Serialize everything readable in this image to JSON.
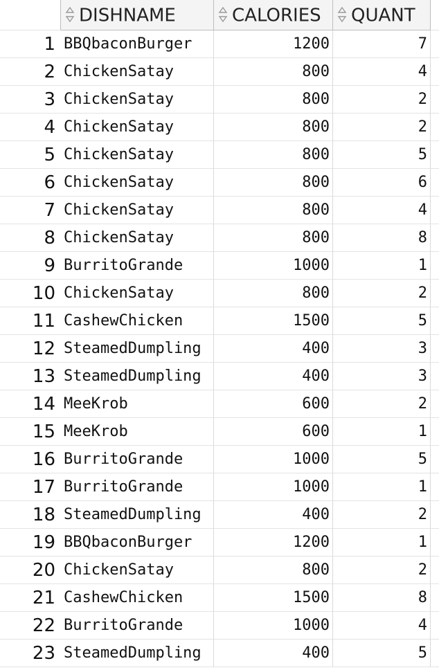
{
  "columns": {
    "dishname": "DISHNAME",
    "calories": "CALORIES",
    "quant": "QUANT",
    "sort_icon": "sort-arrows-icon"
  },
  "rows": [
    {
      "num": "1",
      "dishname": "BBQbaconBurger",
      "calories": "1200",
      "quant": "7"
    },
    {
      "num": "2",
      "dishname": "ChickenSatay",
      "calories": "800",
      "quant": "4"
    },
    {
      "num": "3",
      "dishname": "ChickenSatay",
      "calories": "800",
      "quant": "2"
    },
    {
      "num": "4",
      "dishname": "ChickenSatay",
      "calories": "800",
      "quant": "2"
    },
    {
      "num": "5",
      "dishname": "ChickenSatay",
      "calories": "800",
      "quant": "5"
    },
    {
      "num": "6",
      "dishname": "ChickenSatay",
      "calories": "800",
      "quant": "6"
    },
    {
      "num": "7",
      "dishname": "ChickenSatay",
      "calories": "800",
      "quant": "4"
    },
    {
      "num": "8",
      "dishname": "ChickenSatay",
      "calories": "800",
      "quant": "8"
    },
    {
      "num": "9",
      "dishname": "BurritoGrande",
      "calories": "1000",
      "quant": "1"
    },
    {
      "num": "10",
      "dishname": "ChickenSatay",
      "calories": "800",
      "quant": "2"
    },
    {
      "num": "11",
      "dishname": "CashewChicken",
      "calories": "1500",
      "quant": "5"
    },
    {
      "num": "12",
      "dishname": "SteamedDumpling",
      "calories": "400",
      "quant": "3"
    },
    {
      "num": "13",
      "dishname": "SteamedDumpling",
      "calories": "400",
      "quant": "3"
    },
    {
      "num": "14",
      "dishname": "MeeKrob",
      "calories": "600",
      "quant": "2"
    },
    {
      "num": "15",
      "dishname": "MeeKrob",
      "calories": "600",
      "quant": "1"
    },
    {
      "num": "16",
      "dishname": "BurritoGrande",
      "calories": "1000",
      "quant": "5"
    },
    {
      "num": "17",
      "dishname": "BurritoGrande",
      "calories": "1000",
      "quant": "1"
    },
    {
      "num": "18",
      "dishname": "SteamedDumpling",
      "calories": "400",
      "quant": "2"
    },
    {
      "num": "19",
      "dishname": "BBQbaconBurger",
      "calories": "1200",
      "quant": "1"
    },
    {
      "num": "20",
      "dishname": "ChickenSatay",
      "calories": "800",
      "quant": "2"
    },
    {
      "num": "21",
      "dishname": "CashewChicken",
      "calories": "1500",
      "quant": "8"
    },
    {
      "num": "22",
      "dishname": "BurritoGrande",
      "calories": "1000",
      "quant": "4"
    },
    {
      "num": "23",
      "dishname": "SteamedDumpling",
      "calories": "400",
      "quant": "5"
    }
  ]
}
